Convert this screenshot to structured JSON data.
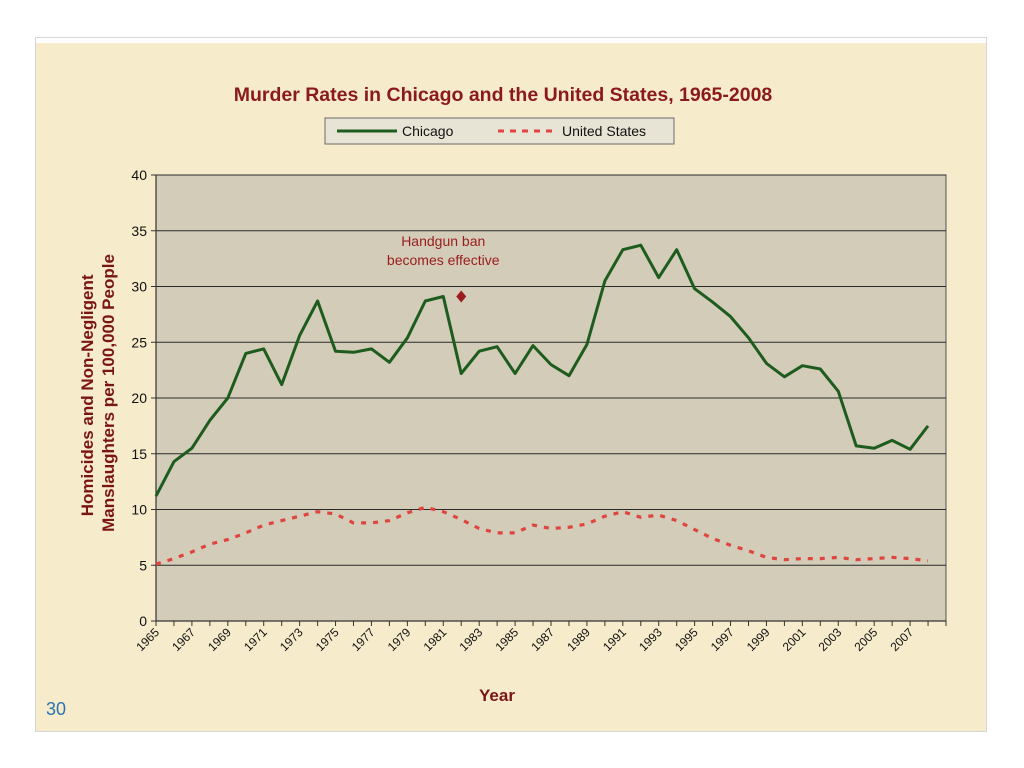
{
  "page_number": "30",
  "chart_data": {
    "type": "line",
    "title": "Murder Rates in Chicago and the United States, 1965-2008",
    "xlabel": "Year",
    "ylabel_lines": [
      "Homicides and Non-Negligent",
      "Manslaughters per 100,000 People"
    ],
    "xlim": [
      1965,
      2009
    ],
    "ylim": [
      0,
      40
    ],
    "yticks": [
      0,
      5,
      10,
      15,
      20,
      25,
      30,
      35,
      40
    ],
    "xticks": [
      "1965",
      "1967",
      "1969",
      "1971",
      "1973",
      "1975",
      "1977",
      "1979",
      "1981",
      "1983",
      "1985",
      "1987",
      "1989",
      "1991",
      "1993",
      "1995",
      "1997",
      "1999",
      "2001",
      "2003",
      "2005",
      "2007"
    ],
    "grid": true,
    "legend_position": "top-center",
    "series": [
      {
        "name": "Chicago",
        "color": "#1e5c1e",
        "style": "solid",
        "x": [
          1965,
          1966,
          1967,
          1968,
          1969,
          1970,
          1971,
          1972,
          1973,
          1974,
          1975,
          1976,
          1977,
          1978,
          1979,
          1980,
          1981,
          1982,
          1983,
          1984,
          1985,
          1986,
          1987,
          1988,
          1989,
          1990,
          1991,
          1992,
          1993,
          1994,
          1995,
          1996,
          1997,
          1998,
          1999,
          2000,
          2001,
          2002,
          2003,
          2004,
          2005,
          2006,
          2007,
          2008
        ],
        "values": [
          11.2,
          14.3,
          15.5,
          18.0,
          20.0,
          24.0,
          24.4,
          21.2,
          25.6,
          28.7,
          24.2,
          24.1,
          24.4,
          23.2,
          25.4,
          28.7,
          29.1,
          22.2,
          24.2,
          24.6,
          22.2,
          24.7,
          23.0,
          22.0,
          24.8,
          30.5,
          33.3,
          33.7,
          30.8,
          33.3,
          29.8,
          28.6,
          27.3,
          25.4,
          23.1,
          21.9,
          22.9,
          22.6,
          20.6,
          15.7,
          15.5,
          16.2,
          15.4,
          17.5
        ]
      },
      {
        "name": "United States",
        "color": "#e0443f",
        "style": "dashed",
        "x": [
          1965,
          1966,
          1967,
          1968,
          1969,
          1970,
          1971,
          1972,
          1973,
          1974,
          1975,
          1976,
          1977,
          1978,
          1979,
          1980,
          1981,
          1982,
          1983,
          1984,
          1985,
          1986,
          1987,
          1988,
          1989,
          1990,
          1991,
          1992,
          1993,
          1994,
          1995,
          1996,
          1997,
          1998,
          1999,
          2000,
          2001,
          2002,
          2003,
          2004,
          2005,
          2006,
          2007,
          2008
        ],
        "values": [
          5.1,
          5.6,
          6.2,
          6.9,
          7.3,
          7.9,
          8.6,
          9.0,
          9.4,
          9.8,
          9.6,
          8.8,
          8.8,
          9.0,
          9.7,
          10.2,
          9.8,
          9.1,
          8.3,
          7.9,
          7.9,
          8.6,
          8.3,
          8.4,
          8.7,
          9.4,
          9.8,
          9.3,
          9.5,
          9.0,
          8.2,
          7.4,
          6.8,
          6.3,
          5.7,
          5.5,
          5.6,
          5.6,
          5.7,
          5.5,
          5.6,
          5.7,
          5.6,
          5.4
        ]
      }
    ],
    "annotation": {
      "lines": [
        "Handgun ban",
        "becomes effective"
      ],
      "x": 1982,
      "y": 29.1,
      "color": "#9b1c1c"
    },
    "colors": {
      "title": "#8b1a1a",
      "axis_label": "#7a1515",
      "plot_background": "#d2ccb9",
      "gridline": "#2a2a2a",
      "legend_background": "#e7e4d5"
    }
  }
}
